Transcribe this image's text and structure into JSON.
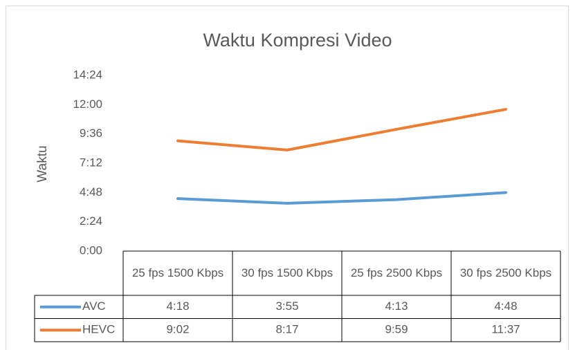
{
  "chart_data": {
    "type": "line",
    "title": "Waktu Kompresi Video",
    "y_label": "Waktu",
    "categories": [
      "25 fps 1500 Kbps",
      "30 fps 1500 Kbps",
      "25 fps 2500 Kbps",
      "30 fps 2500 Kbps"
    ],
    "series": [
      {
        "name": "AVC",
        "color": "#5b9bd5",
        "values": [
          258,
          235,
          253,
          288
        ],
        "value_labels": [
          "4:18",
          "3:55",
          "4:13",
          "4:48"
        ]
      },
      {
        "name": "HEVC",
        "color": "#ed7d31",
        "values": [
          542,
          497,
          599,
          697
        ],
        "value_labels": [
          "9:02",
          "8:17",
          "9:59",
          "11:37"
        ]
      }
    ],
    "ylim": [
      0,
      864
    ],
    "yticks": [
      {
        "value": 0,
        "label": "0:00"
      },
      {
        "value": 144,
        "label": "2:24"
      },
      {
        "value": 288,
        "label": "4:48"
      },
      {
        "value": 432,
        "label": "7:12"
      },
      {
        "value": 576,
        "label": "9:36"
      },
      {
        "value": 720,
        "label": "12:00"
      },
      {
        "value": 864,
        "label": "14:24"
      }
    ],
    "grid": false,
    "data_table": true
  }
}
